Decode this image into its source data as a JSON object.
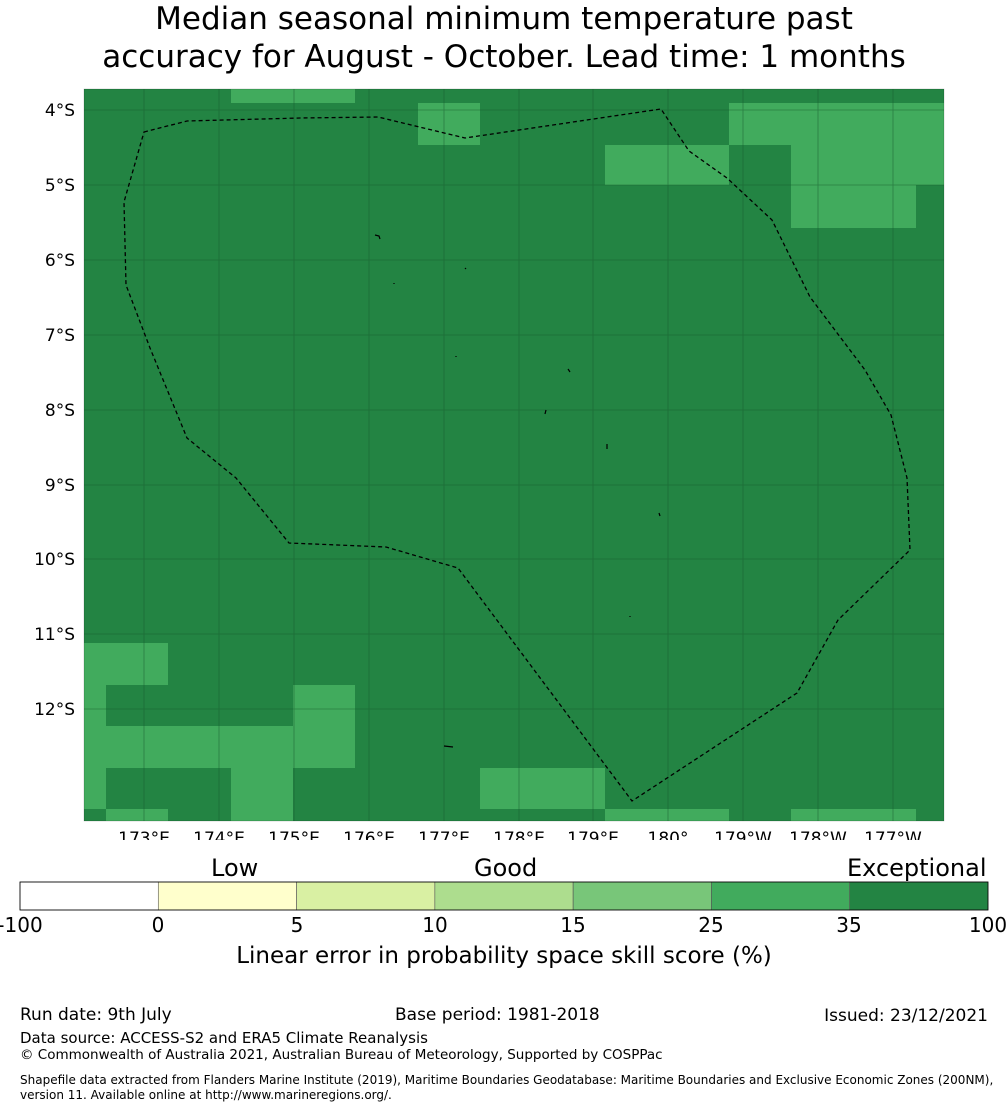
{
  "title_line1": "Median seasonal minimum temperature past",
  "title_line2": "accuracy for August - October. Lead time: 1 months",
  "map": {
    "lon_labels": [
      "173°E",
      "174°E",
      "175°E",
      "176°E",
      "177°E",
      "178°E",
      "179°E",
      "180°",
      "179°W",
      "178°W",
      "177°W"
    ],
    "lat_labels": [
      "4°S",
      "5°S",
      "6°S",
      "7°S",
      "8°S",
      "9°S",
      "10°S",
      "11°S",
      "12°S"
    ],
    "boundary": "EEZ boundary (dashed)",
    "colors": {
      "exceptional": "#238443",
      "good_high": "#41ab5d"
    }
  },
  "colorbar": {
    "category_labels": [
      "Low",
      "Good",
      "Exceptional"
    ],
    "ticks": [
      "-100",
      "0",
      "5",
      "10",
      "15",
      "25",
      "35",
      "100"
    ],
    "colors": [
      "#ffffff",
      "#ffffcc",
      "#d9f0a3",
      "#addd8e",
      "#78c679",
      "#41ab5d",
      "#238443"
    ],
    "caption": "Linear error in probability space skill score (%)"
  },
  "footer": {
    "run_date": "Run date: 9th July",
    "base_period": "Base period: 1981-2018",
    "issued": "Issued: 23/12/2021",
    "data_source": "Data source: ACCESS-S2 and ERA5 Climate Reanalysis",
    "copyright": "© Commonwealth of Australia 2021, Australian Bureau of Meteorology, Supported by COSPPac",
    "shapefile_line1": "Shapefile data extracted from Flanders Marine Institute (2019), Maritime Boundaries Geodatabase: Maritime Boundaries and Exclusive Economic Zones (200NM),",
    "shapefile_line2": "version 11. Available online at http://www.marineregions.org/."
  }
}
